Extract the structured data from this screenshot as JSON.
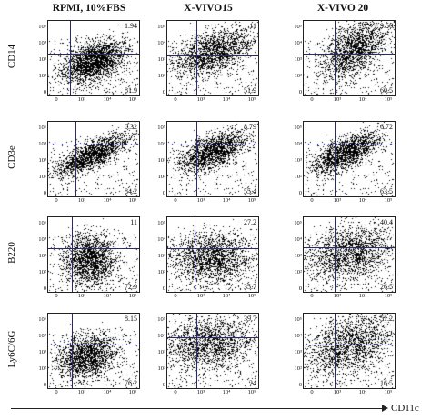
{
  "chart_data": {
    "type": "scatter",
    "columns": [
      "RPMI, 10%FBS",
      "X-VIVO15",
      "X-VIVO 20"
    ],
    "rows": [
      "CD14",
      "CD3e",
      "B220",
      "Ly6C/6G"
    ],
    "xlabel": "CD11c",
    "y_ticks": [
      "10⁵",
      "10⁴",
      "10³",
      "10²",
      "0"
    ],
    "x_ticks": [
      "0",
      "10³",
      "10⁴",
      "10⁵"
    ],
    "quadrants": [
      [
        {
          "upper_right": "1.94",
          "lower_right": "81.9"
        },
        {
          "upper_right": "11",
          "lower_right": "51.9"
        },
        {
          "upper_right": "9.56",
          "lower_right": "60.5"
        }
      ],
      [
        {
          "upper_right": "0.32",
          "lower_right": "84.2"
        },
        {
          "upper_right": "8.79",
          "lower_right": "55.4"
        },
        {
          "upper_right": "6.72",
          "lower_right": "63.5"
        }
      ],
      [
        {
          "upper_right": "11",
          "lower_right": "72.9"
        },
        {
          "upper_right": "27.2",
          "lower_right": "35.7"
        },
        {
          "upper_right": "40.4",
          "lower_right": "26.5"
        }
      ],
      [
        {
          "upper_right": "8.15",
          "lower_right": "76.2"
        },
        {
          "upper_right": "39.7",
          "lower_right": "24"
        },
        {
          "upper_right": "51.2",
          "lower_right": "16.5"
        }
      ]
    ],
    "legend": "none",
    "grid": false
  }
}
